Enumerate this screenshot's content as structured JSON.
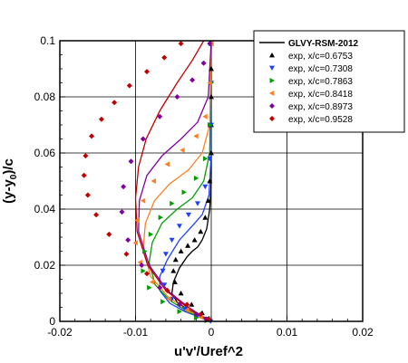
{
  "chart_data": {
    "type": "scatter",
    "title": "",
    "xlabel": "u'v'/Uref^2",
    "ylabel": "(y-y0)/c",
    "xlim": [
      -0.02,
      0.02
    ],
    "ylim": [
      0,
      0.1
    ],
    "xticks": [
      -0.02,
      -0.01,
      0,
      0.01,
      0.02
    ],
    "xtick_labels": [
      "-0.02",
      "-0.01",
      "0",
      "0.01",
      "0.02"
    ],
    "yticks": [
      0,
      0.02,
      0.04,
      0.06,
      0.08,
      0.1
    ],
    "ytick_labels": [
      "0",
      "0.02",
      "0.04",
      "0.06",
      "0.08",
      "0.1"
    ],
    "grid": true,
    "legend_position": "top-right",
    "series": [
      {
        "name": "GLVY-RSM-2012",
        "kind": "line",
        "color": "#000000",
        "x": [
          0.0,
          0.0,
          0.0,
          -0.0002,
          -0.0006,
          -0.0012,
          -0.0018,
          -0.0025,
          -0.0032,
          -0.0042,
          -0.005,
          -0.0052,
          -0.0045,
          -0.003,
          -0.0015,
          -0.0005,
          0.0
        ],
        "y": [
          0.1,
          0.07,
          0.05,
          0.04,
          0.033,
          0.029,
          0.0265,
          0.025,
          0.023,
          0.019,
          0.014,
          0.01,
          0.0068,
          0.004,
          0.002,
          0.0008,
          0.0
        ]
      },
      {
        "name": "x/c=0.7308",
        "kind": "line",
        "color": "#2040ff",
        "x": [
          0.0,
          0.0,
          -0.0003,
          -0.0012,
          -0.0025,
          -0.0042,
          -0.0058,
          -0.0068,
          -0.0068,
          -0.0055,
          -0.0035,
          -0.0015,
          -0.0004,
          0.0
        ],
        "y": [
          0.1,
          0.06,
          0.045,
          0.038,
          0.034,
          0.029,
          0.022,
          0.016,
          0.011,
          0.0065,
          0.0035,
          0.0015,
          0.0005,
          0.0
        ]
      },
      {
        "name": "x/c=0.7863",
        "kind": "line",
        "color": "#00a000",
        "x": [
          0.0,
          -0.0002,
          -0.001,
          -0.0025,
          -0.0045,
          -0.0065,
          -0.0078,
          -0.0082,
          -0.0074,
          -0.0055,
          -0.0032,
          -0.0012,
          0.0
        ],
        "y": [
          0.1,
          0.06,
          0.05,
          0.044,
          0.04,
          0.035,
          0.028,
          0.021,
          0.013,
          0.0075,
          0.0035,
          0.0012,
          0.0
        ]
      },
      {
        "name": "x/c=0.8418",
        "kind": "line",
        "color": "#ff7f20",
        "x": [
          0.0,
          -0.0002,
          -0.0012,
          -0.003,
          -0.0055,
          -0.0075,
          -0.0087,
          -0.009,
          -0.008,
          -0.0058,
          -0.0032,
          -0.0012,
          0.0
        ],
        "y": [
          0.1,
          0.07,
          0.06,
          0.054,
          0.049,
          0.043,
          0.035,
          0.026,
          0.016,
          0.009,
          0.004,
          0.0015,
          0.0
        ]
      },
      {
        "name": "x/c=0.8973",
        "kind": "line",
        "color": "#8000a0",
        "x": [
          0.0,
          -0.0004,
          -0.0018,
          -0.004,
          -0.0065,
          -0.0085,
          -0.0095,
          -0.0096,
          -0.0082,
          -0.0058,
          -0.003,
          -0.001,
          0.0
        ],
        "y": [
          0.1,
          0.08,
          0.071,
          0.065,
          0.059,
          0.052,
          0.043,
          0.032,
          0.02,
          0.011,
          0.005,
          0.0015,
          0.0
        ]
      },
      {
        "name": "x/c=0.9528",
        "kind": "line",
        "color": "#c00000",
        "x": [
          -0.001,
          -0.0025,
          -0.0045,
          -0.0068,
          -0.0086,
          -0.0096,
          -0.01,
          -0.0098,
          -0.0084,
          -0.006,
          -0.0032,
          -0.001,
          0.0
        ],
        "y": [
          0.1,
          0.093,
          0.085,
          0.075,
          0.065,
          0.055,
          0.044,
          0.032,
          0.02,
          0.011,
          0.005,
          0.0015,
          0.0
        ]
      },
      {
        "name": "exp, x/c=0.6753",
        "kind": "markers",
        "marker": "triangle-up",
        "color": "#000000",
        "x": [
          0.0,
          0.0,
          0.0,
          0.0,
          0.0,
          -0.0002,
          -0.0004,
          -0.0008,
          -0.0014,
          -0.0022,
          -0.0031,
          -0.004,
          -0.0047,
          -0.005,
          -0.0048,
          -0.004,
          -0.0026,
          -0.0012,
          -0.0003
        ],
        "y": [
          0.099,
          0.09,
          0.08,
          0.07,
          0.06,
          0.05,
          0.043,
          0.037,
          0.032,
          0.029,
          0.027,
          0.025,
          0.022,
          0.018,
          0.014,
          0.01,
          0.006,
          0.003,
          0.001
        ]
      },
      {
        "name": "exp, x/c=0.7308",
        "kind": "markers",
        "marker": "triangle-down",
        "color": "#2040ff",
        "x": [
          0.0,
          0.0,
          0.0,
          -0.0002,
          -0.0008,
          -0.0018,
          -0.003,
          -0.0042,
          -0.0052,
          -0.006,
          -0.0064,
          -0.0062,
          -0.0052,
          -0.0035,
          -0.0018,
          -0.0006,
          -0.0001
        ],
        "y": [
          0.099,
          0.085,
          0.07,
          0.058,
          0.048,
          0.042,
          0.038,
          0.034,
          0.029,
          0.024,
          0.018,
          0.013,
          0.008,
          0.0045,
          0.002,
          0.0008,
          0.0
        ]
      },
      {
        "name": "exp, x/c=0.7863",
        "kind": "markers",
        "marker": "triangle-right",
        "color": "#00a000",
        "x": [
          0.0,
          0.0,
          -0.0002,
          -0.0008,
          -0.002,
          -0.0036,
          -0.0052,
          -0.0067,
          -0.008,
          -0.0088,
          -0.009,
          -0.0082,
          -0.0064,
          -0.0042,
          -0.002,
          -0.0006
        ],
        "y": [
          0.099,
          0.085,
          0.07,
          0.058,
          0.051,
          0.046,
          0.042,
          0.037,
          0.031,
          0.025,
          0.018,
          0.012,
          0.007,
          0.0035,
          0.0013,
          0.0003
        ]
      },
      {
        "name": "exp, x/c=0.8418",
        "kind": "markers",
        "marker": "triangle-left",
        "color": "#ff7f20",
        "x": [
          0.0,
          -0.0002,
          -0.0008,
          -0.002,
          -0.0038,
          -0.0058,
          -0.0076,
          -0.009,
          -0.0098,
          -0.01,
          -0.0094,
          -0.0078,
          -0.0056,
          -0.0032,
          -0.0014,
          -0.0004
        ],
        "y": [
          0.099,
          0.085,
          0.073,
          0.066,
          0.061,
          0.056,
          0.05,
          0.043,
          0.036,
          0.028,
          0.021,
          0.014,
          0.008,
          0.004,
          0.0015,
          0.0004
        ]
      },
      {
        "name": "exp, x/c=0.8973",
        "kind": "markers",
        "marker": "diamond",
        "color": "#8000a0",
        "x": [
          -0.0002,
          -0.001,
          -0.0025,
          -0.0045,
          -0.0068,
          -0.009,
          -0.0106,
          -0.0116,
          -0.0118,
          -0.011,
          -0.0092,
          -0.0068,
          -0.0042,
          -0.002,
          -0.0007
        ],
        "y": [
          0.099,
          0.092,
          0.086,
          0.08,
          0.073,
          0.065,
          0.057,
          0.048,
          0.039,
          0.029,
          0.02,
          0.012,
          0.006,
          0.0025,
          0.0008
        ]
      },
      {
        "name": "exp, x/c=0.9528",
        "kind": "markers",
        "marker": "diamond",
        "color": "#c00000",
        "x": [
          -0.004,
          -0.0062,
          -0.0085,
          -0.0108,
          -0.0128,
          -0.0145,
          -0.0158,
          -0.0166,
          -0.0168,
          -0.0163,
          -0.0152,
          -0.0135,
          -0.0112,
          -0.0085,
          -0.0058,
          -0.0032,
          -0.0014,
          -0.0004
        ],
        "y": [
          0.099,
          0.094,
          0.089,
          0.084,
          0.078,
          0.072,
          0.066,
          0.059,
          0.052,
          0.045,
          0.038,
          0.031,
          0.024,
          0.017,
          0.011,
          0.006,
          0.0025,
          0.0008
        ]
      }
    ]
  }
}
